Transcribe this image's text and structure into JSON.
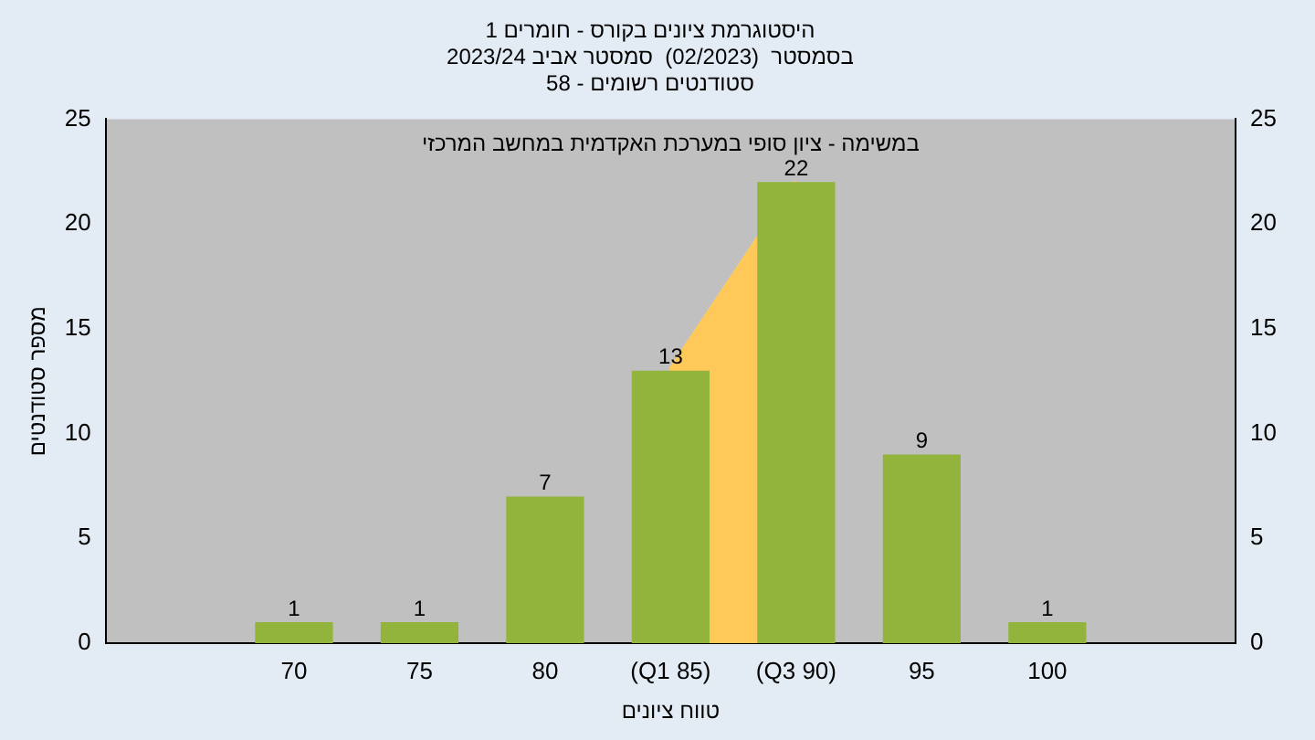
{
  "chart_data": {
    "type": "bar",
    "title": "היסטוגרמת ציונים בקורס - חומרים 1\nבסמסטר  (02/2023)  סמסטר אביב 2023/24\nסטודנטים רשומים - 58",
    "xlabel": "טווח ציונים",
    "ylabel": "מספר סטודנטים",
    "annotations": [
      "במשימה - ציון סופי במערכת האקדמית במחשב המרכזי"
    ],
    "categories": [
      null,
      "70",
      "75",
      "80",
      "(Q1 85)",
      "(Q3 90)",
      "95",
      "100",
      null
    ],
    "series": [
      {
        "color": "#92b43c",
        "values": [
          null,
          1,
          1,
          7,
          13,
          22,
          9,
          1,
          null
        ],
        "value_labels": [
          null,
          "1",
          "1",
          "7",
          "13",
          "22",
          "9",
          "1",
          null
        ]
      },
      {
        "type": "area",
        "color": "#ffc95a",
        "values": [
          null,
          null,
          null,
          null,
          13,
          22,
          null,
          null,
          null
        ]
      }
    ],
    "ylim": [
      0,
      25
    ],
    "yticks": [
      0,
      5,
      10,
      15,
      20,
      25
    ],
    "y2lim": [
      0,
      25
    ],
    "y2ticks": [
      0,
      5,
      10,
      15,
      20,
      25
    ],
    "grid": false,
    "legend": false
  }
}
